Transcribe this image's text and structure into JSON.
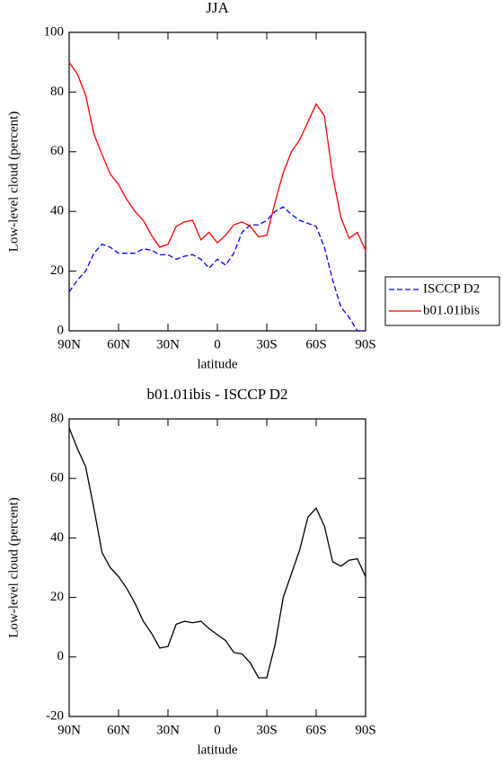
{
  "chart_data": [
    {
      "type": "line",
      "title": "JJA",
      "x_label": "latitude",
      "y_label": "Low-level cloud (percent)",
      "x": [
        90,
        85,
        80,
        75,
        70,
        65,
        60,
        55,
        50,
        45,
        40,
        35,
        30,
        25,
        20,
        15,
        10,
        5,
        0,
        -5,
        -10,
        -15,
        -20,
        -25,
        -30,
        -35,
        -40,
        -45,
        -50,
        -55,
        -60,
        -65,
        -70,
        -75,
        -80,
        -85,
        -90
      ],
      "series": [
        {
          "name": "ISCCP D2",
          "color": "#0000ff",
          "style": "dashed",
          "values": [
            13,
            17,
            20,
            26,
            29,
            28,
            26,
            26,
            26,
            27.5,
            27,
            25.5,
            25.5,
            24,
            25,
            25.5,
            24,
            21,
            24,
            22,
            26,
            33,
            35.5,
            35.5,
            37,
            40,
            41.5,
            39,
            37,
            36,
            35,
            28,
            17,
            8,
            4.5,
            0,
            0
          ]
        },
        {
          "name": "b01.01ibis",
          "color": "#ff0000",
          "style": "solid",
          "values": [
            90,
            86,
            79,
            66,
            59,
            52.5,
            49,
            44,
            40,
            37,
            32,
            28,
            29,
            35,
            36.5,
            37,
            30.5,
            33,
            29.5,
            32,
            35.5,
            36.5,
            35,
            31.5,
            32,
            43,
            53,
            60,
            64,
            70,
            76,
            72,
            52,
            38,
            31,
            33,
            27
          ]
        }
      ],
      "xlim": [
        90,
        -90
      ],
      "xticks": [
        {
          "value": 90,
          "label": "90N"
        },
        {
          "value": 60,
          "label": "60N"
        },
        {
          "value": 30,
          "label": "30N"
        },
        0,
        {
          "value": -30,
          "label": "30S"
        },
        {
          "value": -60,
          "label": "60S"
        },
        {
          "value": -90,
          "label": "90S"
        }
      ],
      "ylim": [
        0,
        100
      ],
      "yticks": [
        0,
        20,
        40,
        60,
        80,
        100
      ],
      "legend": "right"
    },
    {
      "type": "line",
      "title": "b01.01ibis - ISCCP D2",
      "x_label": "latitude",
      "y_label": "Low-level cloud (percent)",
      "x": [
        90,
        85,
        80,
        75,
        70,
        65,
        60,
        55,
        50,
        45,
        40,
        35,
        30,
        25,
        20,
        15,
        10,
        5,
        0,
        -5,
        -10,
        -15,
        -20,
        -25,
        -30,
        -35,
        -40,
        -45,
        -50,
        -55,
        -60,
        -65,
        -70,
        -75,
        -80,
        -85,
        -90
      ],
      "series": [
        {
          "color": "#000000",
          "style": "solid",
          "values": [
            77,
            70,
            64,
            50,
            35,
            30,
            27,
            23,
            18,
            12,
            8,
            3,
            3.5,
            11,
            12,
            11.5,
            12,
            9.5,
            7.5,
            5.5,
            1.5,
            1,
            -2,
            -7,
            -7,
            4,
            20,
            28,
            36,
            47,
            50,
            44,
            32,
            30.5,
            32.5,
            33,
            27
          ]
        }
      ],
      "xlim": [
        90,
        -90
      ],
      "xticks": [
        {
          "value": 90,
          "label": "90N"
        },
        {
          "value": 60,
          "label": "60N"
        },
        {
          "value": 30,
          "label": "30N"
        },
        0,
        {
          "value": -30,
          "label": "30S"
        },
        {
          "value": -60,
          "label": "60S"
        },
        {
          "value": -90,
          "label": "90S"
        }
      ],
      "ylim": [
        -20,
        80
      ],
      "yticks": [
        -20,
        0,
        20,
        40,
        60,
        80
      ]
    }
  ]
}
